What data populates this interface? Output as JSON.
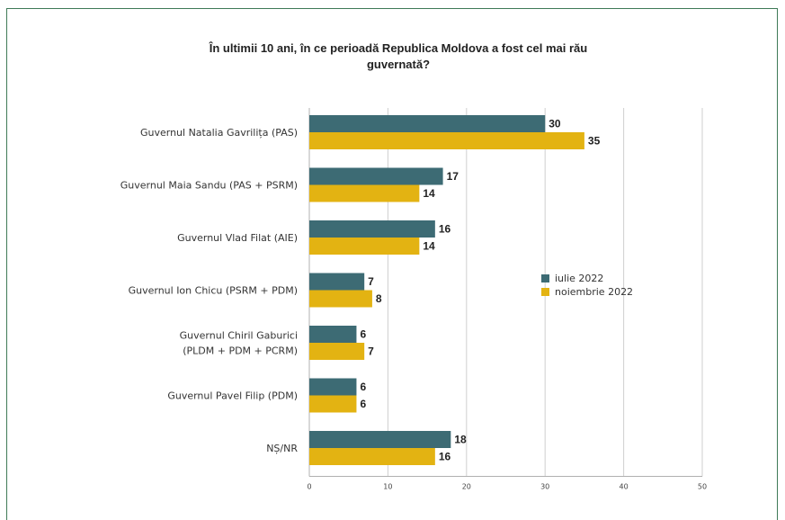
{
  "chart_data": {
    "type": "bar",
    "orientation": "horizontal",
    "title_lines": [
      "În ultimii 10 ani, în ce perioadă Republica Moldova a fost cel mai rău",
      "guvernată?"
    ],
    "categories": [
      [
        "Guvernul Natalia Gavrilița (PAS)"
      ],
      [
        "Guvernul Maia Sandu (PAS + PSRM)"
      ],
      [
        "Guvernul Vlad Filat (AIE)"
      ],
      [
        "Guvernul Ion Chicu (PSRM + PDM)"
      ],
      [
        "Guvernul Chiril Gaburici",
        "(PLDM + PDM + PCRM)"
      ],
      [
        "Guvernul Pavel Filip (PDM)"
      ],
      [
        "NȘ/NR"
      ]
    ],
    "series": [
      {
        "name": "iulie 2022",
        "color": "#3d6b74",
        "values": [
          30,
          17,
          16,
          7,
          6,
          6,
          18
        ]
      },
      {
        "name": "noiembrie 2022",
        "color": "#e3b312",
        "values": [
          35,
          14,
          14,
          8,
          7,
          6,
          16
        ]
      }
    ],
    "xlim": [
      0,
      50
    ],
    "xticks": [
      0,
      10,
      20,
      30,
      40,
      50
    ],
    "grid": true,
    "legend_position": "right"
  }
}
